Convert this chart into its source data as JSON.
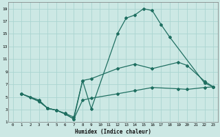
{
  "xlabel": "Humidex (Indice chaleur)",
  "bg_color": "#cce8e4",
  "grid_color": "#aad4d0",
  "line_color": "#1e6e60",
  "xlim": [
    -0.5,
    23.5
  ],
  "ylim": [
    1,
    20
  ],
  "xticks": [
    0,
    1,
    2,
    3,
    4,
    5,
    6,
    7,
    8,
    9,
    10,
    11,
    12,
    13,
    14,
    15,
    16,
    17,
    18,
    19,
    20,
    21,
    22,
    23
  ],
  "yticks": [
    1,
    3,
    5,
    7,
    9,
    11,
    13,
    15,
    17,
    19
  ],
  "curve1_x": [
    1,
    2,
    3,
    4,
    5,
    6,
    7,
    8,
    9,
    12,
    13,
    14,
    15,
    16,
    17,
    18,
    22,
    23
  ],
  "curve1_y": [
    5.5,
    5.0,
    4.5,
    3.2,
    2.9,
    2.4,
    1.8,
    7.6,
    3.1,
    15.0,
    17.5,
    18.0,
    19.0,
    18.7,
    16.5,
    14.5,
    7.2,
    6.6
  ],
  "curve2_x": [
    1,
    3,
    4,
    5,
    6,
    7,
    8,
    9,
    12,
    14,
    16,
    19,
    20,
    22,
    23
  ],
  "curve2_y": [
    5.5,
    4.3,
    3.2,
    2.9,
    2.3,
    1.5,
    7.6,
    7.9,
    9.5,
    10.2,
    9.5,
    10.5,
    10.0,
    7.5,
    6.6
  ],
  "curve3_x": [
    1,
    3,
    4,
    5,
    6,
    7,
    8,
    9,
    12,
    14,
    16,
    19,
    20,
    22,
    23
  ],
  "curve3_y": [
    5.5,
    4.3,
    3.2,
    2.9,
    2.3,
    1.5,
    4.5,
    4.8,
    5.5,
    6.0,
    6.5,
    6.3,
    6.2,
    6.5,
    6.6
  ]
}
